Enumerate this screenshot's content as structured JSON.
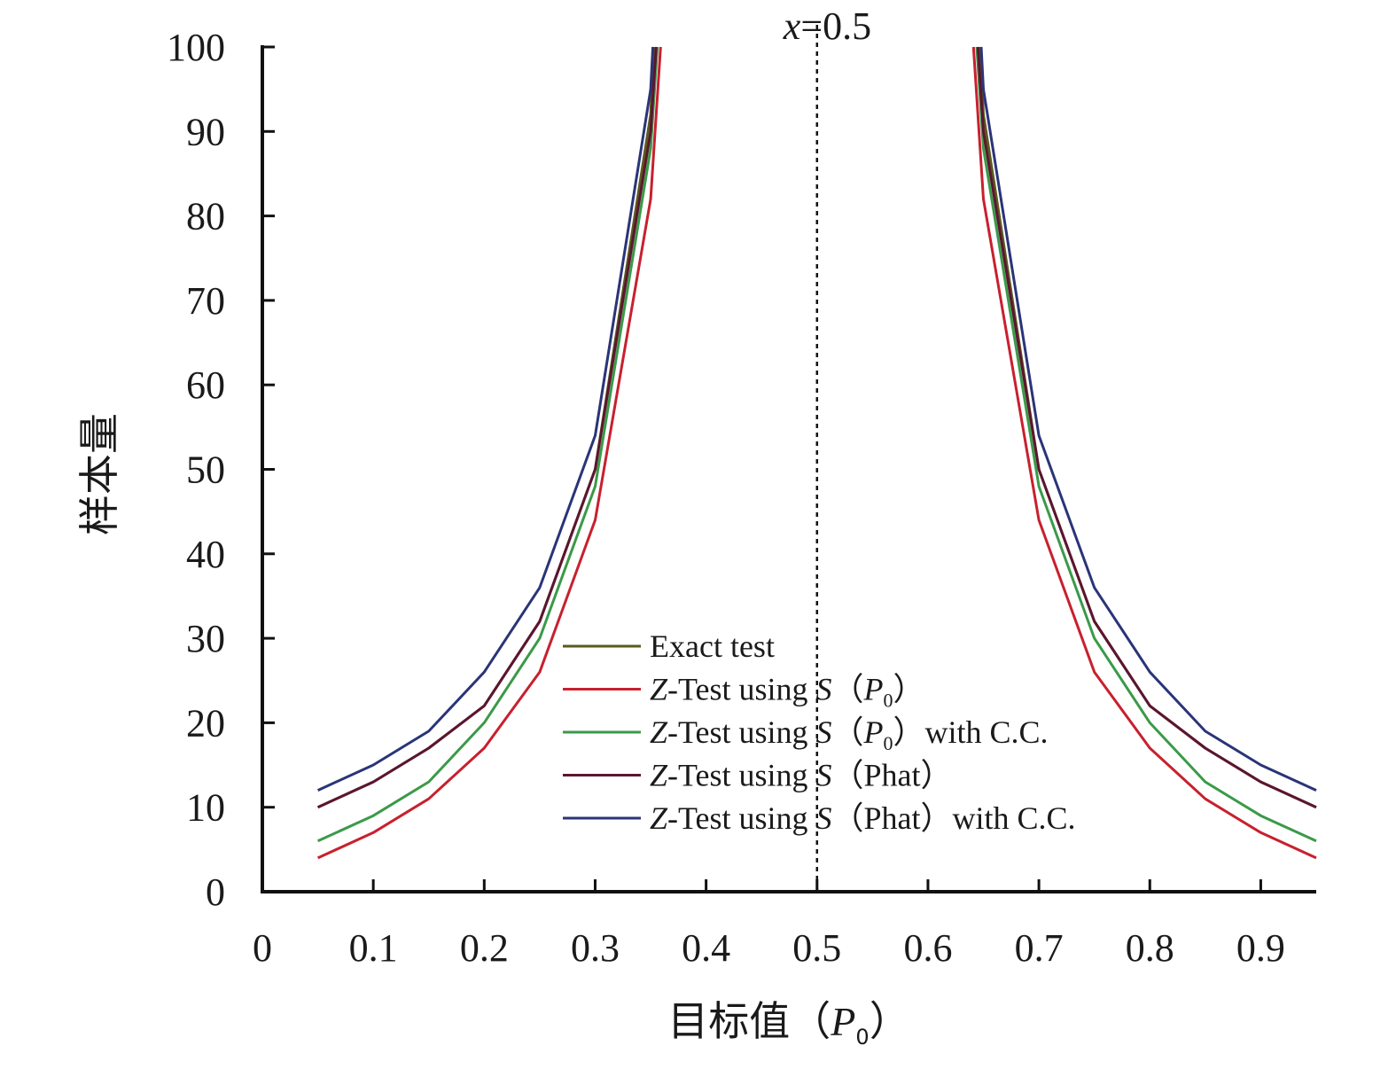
{
  "chart_data": {
    "type": "line",
    "xlabel_main": "目标值（",
    "xlabel_var": "P",
    "xlabel_sub": "0",
    "xlabel_close": "）",
    "ylabel": "样本量",
    "xlim": [
      0,
      0.95
    ],
    "ylim": [
      0,
      100
    ],
    "x_ticks": [
      0,
      0.1,
      0.2,
      0.3,
      0.4,
      0.5,
      0.6,
      0.7,
      0.8,
      0.9
    ],
    "x_tick_labels": [
      "0",
      "0.1",
      "0.2",
      "0.3",
      "0.4",
      "0.5",
      "0.6",
      "0.7",
      "0.8",
      "0.9"
    ],
    "y_ticks": [
      0,
      10,
      20,
      30,
      40,
      50,
      60,
      70,
      80,
      90,
      100
    ],
    "y_tick_labels": [
      "0",
      "10",
      "20",
      "30",
      "40",
      "50",
      "60",
      "70",
      "80",
      "90",
      "100"
    ],
    "grid": false,
    "legend_position": "center",
    "annotation": {
      "x": 0.5,
      "var": "x",
      "text": "=0.5",
      "style": "dotted vertical line"
    },
    "series": [
      {
        "name": "Exact test",
        "color": "#5a5a1e",
        "left": [
          [
            0.05,
            10
          ],
          [
            0.1,
            13
          ],
          [
            0.15,
            17
          ],
          [
            0.2,
            22
          ],
          [
            0.25,
            32
          ],
          [
            0.3,
            50
          ],
          [
            0.35,
            92
          ],
          [
            0.353,
            100
          ]
        ],
        "right": [
          [
            0.647,
            100
          ],
          [
            0.65,
            92
          ],
          [
            0.7,
            50
          ],
          [
            0.75,
            32
          ],
          [
            0.8,
            22
          ],
          [
            0.85,
            17
          ],
          [
            0.9,
            13
          ],
          [
            0.95,
            10
          ]
        ]
      },
      {
        "name": "Z-Test using S(P0)",
        "color": "#c8202e",
        "left": [
          [
            0.05,
            4
          ],
          [
            0.1,
            7
          ],
          [
            0.15,
            11
          ],
          [
            0.2,
            17
          ],
          [
            0.25,
            26
          ],
          [
            0.3,
            44
          ],
          [
            0.35,
            82
          ],
          [
            0.359,
            100
          ]
        ],
        "right": [
          [
            0.641,
            100
          ],
          [
            0.65,
            82
          ],
          [
            0.7,
            44
          ],
          [
            0.75,
            26
          ],
          [
            0.8,
            17
          ],
          [
            0.85,
            11
          ],
          [
            0.9,
            7
          ],
          [
            0.95,
            4
          ]
        ]
      },
      {
        "name": "Z-Test using S(P0) with C.C.",
        "color": "#3a9a48",
        "left": [
          [
            0.05,
            6
          ],
          [
            0.1,
            9
          ],
          [
            0.15,
            13
          ],
          [
            0.2,
            20
          ],
          [
            0.25,
            30
          ],
          [
            0.3,
            48
          ],
          [
            0.35,
            88
          ],
          [
            0.356,
            100
          ]
        ],
        "right": [
          [
            0.644,
            100
          ],
          [
            0.65,
            88
          ],
          [
            0.7,
            48
          ],
          [
            0.75,
            30
          ],
          [
            0.8,
            20
          ],
          [
            0.85,
            13
          ],
          [
            0.9,
            9
          ],
          [
            0.95,
            6
          ]
        ]
      },
      {
        "name": "Z-Test using S(Phat)",
        "color": "#5c1530",
        "left": [
          [
            0.05,
            10
          ],
          [
            0.1,
            13
          ],
          [
            0.15,
            17
          ],
          [
            0.2,
            22
          ],
          [
            0.25,
            32
          ],
          [
            0.3,
            50
          ],
          [
            0.35,
            90
          ],
          [
            0.355,
            100
          ]
        ],
        "right": [
          [
            0.645,
            100
          ],
          [
            0.65,
            90
          ],
          [
            0.7,
            50
          ],
          [
            0.75,
            32
          ],
          [
            0.8,
            22
          ],
          [
            0.85,
            17
          ],
          [
            0.9,
            13
          ],
          [
            0.95,
            10
          ]
        ]
      },
      {
        "name": "Z-Test using S(Phat) with C.C.",
        "color": "#2a3478",
        "left": [
          [
            0.05,
            12
          ],
          [
            0.1,
            15
          ],
          [
            0.15,
            19
          ],
          [
            0.2,
            26
          ],
          [
            0.25,
            36
          ],
          [
            0.3,
            54
          ],
          [
            0.35,
            95
          ],
          [
            0.352,
            100
          ]
        ],
        "right": [
          [
            0.648,
            100
          ],
          [
            0.65,
            95
          ],
          [
            0.7,
            54
          ],
          [
            0.75,
            36
          ],
          [
            0.8,
            26
          ],
          [
            0.85,
            19
          ],
          [
            0.9,
            15
          ],
          [
            0.95,
            12
          ]
        ]
      }
    ],
    "legend_entries": [
      {
        "parts": [
          [
            "",
            "Exact test"
          ]
        ]
      },
      {
        "parts": [
          [
            "i",
            "Z"
          ],
          [
            "",
            "-Test using "
          ],
          [
            "i",
            "S"
          ],
          [
            "",
            "（"
          ],
          [
            "i",
            "P"
          ],
          [
            "s",
            "0"
          ],
          [
            "",
            "）"
          ]
        ]
      },
      {
        "parts": [
          [
            "i",
            "Z"
          ],
          [
            "",
            "-Test using "
          ],
          [
            "i",
            "S"
          ],
          [
            "",
            "（"
          ],
          [
            "i",
            "P"
          ],
          [
            "s",
            "0"
          ],
          [
            "",
            "）with C.C."
          ]
        ]
      },
      {
        "parts": [
          [
            "i",
            "Z"
          ],
          [
            "",
            "-Test using "
          ],
          [
            "i",
            "S"
          ],
          [
            "",
            "（Phat）"
          ]
        ]
      },
      {
        "parts": [
          [
            "i",
            "Z"
          ],
          [
            "",
            "-Test using "
          ],
          [
            "i",
            "S"
          ],
          [
            "",
            "（Phat）with C.C."
          ]
        ]
      }
    ]
  }
}
